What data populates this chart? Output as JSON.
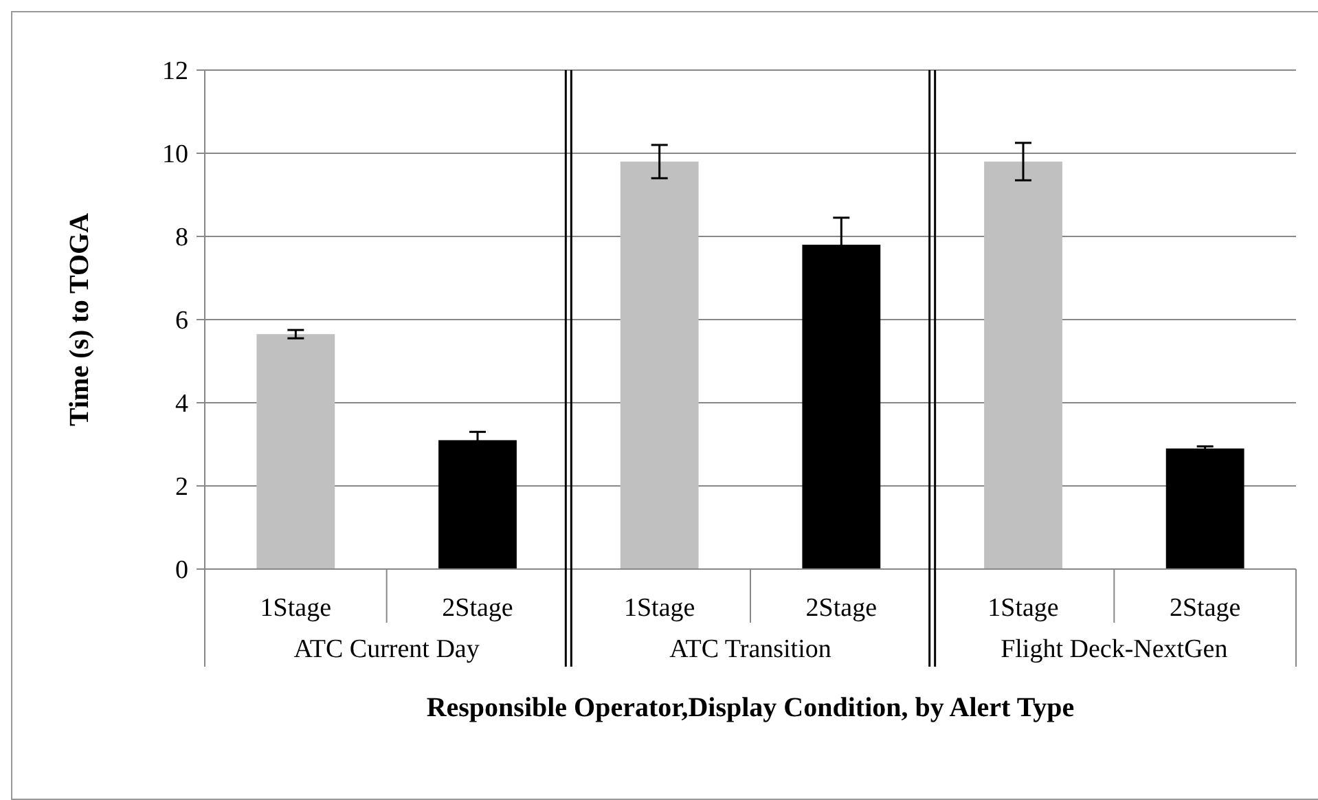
{
  "chart_data": {
    "type": "bar",
    "xlabel": "Responsible Operator,Display Condition, by Alert Type",
    "ylabel": "Time (s) to TOGA",
    "categories": [
      "1Stage",
      "2Stage",
      "1Stage",
      "2Stage",
      "1Stage",
      "2Stage"
    ],
    "values": [
      5.65,
      3.1,
      9.8,
      7.8,
      9.8,
      2.9
    ],
    "errors": [
      0.1,
      0.2,
      0.4,
      0.65,
      0.45,
      0.05
    ],
    "colors": [
      "#c0c0c0",
      "#000000",
      "#c0c0c0",
      "#000000",
      "#c0c0c0",
      "#000000"
    ],
    "ylim": [
      0,
      12
    ],
    "yticks": [
      0,
      2,
      4,
      6,
      8,
      10,
      12
    ],
    "grid": "y",
    "annotations": [
      "ATC Current Day",
      "ATC Transition",
      "Flight Deck-NextGen"
    ]
  }
}
